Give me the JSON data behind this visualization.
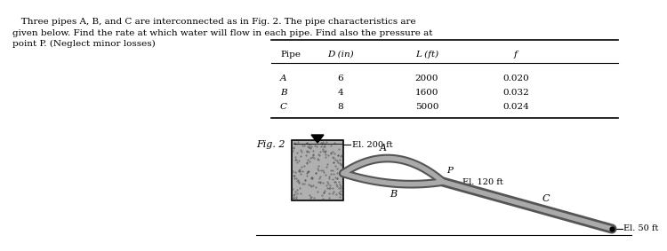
{
  "title_text": "   Three pipes A, B, and C are interconnected as in Fig. 2. The pipe characteristics are\ngiven below. Find the rate at which water will flow in each pipe. Find also the pressure at\npoint P. (Neglect minor losses)",
  "table_headers": [
    "Pipe",
    "D (in)",
    "L (ft)",
    "f"
  ],
  "table_rows": [
    [
      "A",
      "6",
      "2000",
      "0.020"
    ],
    [
      "B",
      "4",
      "1600",
      "0.032"
    ],
    [
      "C",
      "8",
      "5000",
      "0.024"
    ]
  ],
  "fig_label": "Fig. 2",
  "paper_color": "#ffffff",
  "water_surface_label": "El. 200 ft",
  "junction_label_P": "P",
  "el_120_label": "El. 120 ft",
  "el_50_label": "El. 50 ft",
  "pipe_label_A": "A",
  "pipe_label_B": "B",
  "pipe_label_C": "C",
  "tank_facecolor": "#999999",
  "pipe_edge_color": "#555555",
  "pipe_inner_color": "#aaaaaa"
}
